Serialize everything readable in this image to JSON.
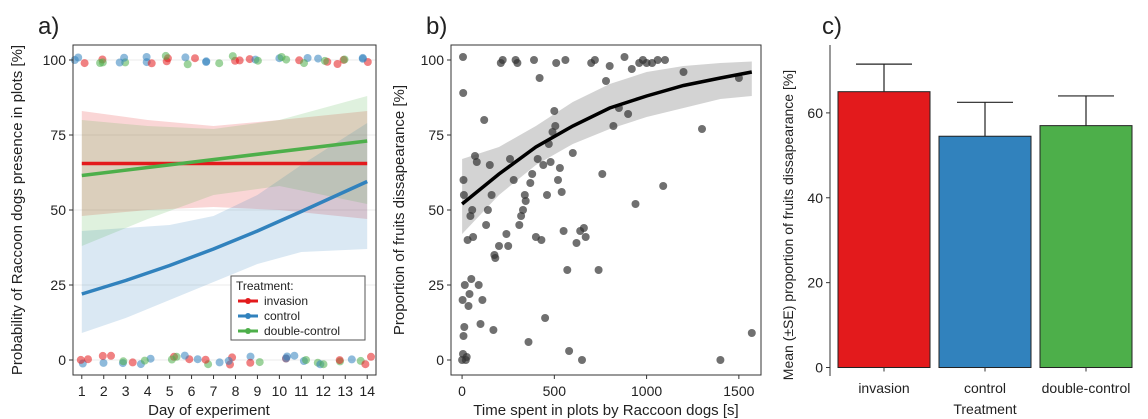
{
  "chart_data": [
    {
      "panel": "a)",
      "type": "line",
      "xlabel": "Day of experiment",
      "ylabel": "Probability of Raccoon dogs presence in plots [%]",
      "xlim": [
        0.6,
        14.4
      ],
      "ylim": [
        -5,
        105
      ],
      "x_ticks": [
        "1",
        "2",
        "3",
        "4",
        "5",
        "6",
        "7",
        "8",
        "9",
        "10",
        "11",
        "12",
        "13",
        "14"
      ],
      "y_ticks": [
        "0",
        "25",
        "50",
        "75",
        "100"
      ],
      "legend": {
        "title": "Treatment:",
        "position": "bottom-right",
        "entries": [
          "invasion",
          "control",
          "double-control"
        ]
      },
      "series": [
        {
          "name": "invasion",
          "color": "#e31a1c",
          "x": [
            1,
            14
          ],
          "y": [
            65.5,
            65.5
          ],
          "ci_x": [
            1,
            4,
            7,
            10,
            14
          ],
          "ci_lo": [
            48,
            50,
            51,
            50,
            47
          ],
          "ci_hi": [
            83,
            80,
            78,
            80,
            83
          ]
        },
        {
          "name": "control",
          "color": "#3182bd",
          "x": [
            1,
            3,
            5,
            7,
            9,
            11,
            14
          ],
          "y": [
            22,
            26.5,
            31.5,
            37,
            43,
            49.5,
            59.5
          ],
          "ci_x": [
            1,
            3,
            5,
            7,
            9,
            11,
            14
          ],
          "ci_lo": [
            9,
            14,
            20,
            26,
            32,
            36,
            37
          ],
          "ci_hi": [
            43,
            44,
            45,
            48,
            55,
            65,
            79
          ]
        },
        {
          "name": "double-control",
          "color": "#4daf4a",
          "x": [
            1,
            14
          ],
          "y": [
            61.5,
            73
          ],
          "ci_x": [
            1,
            4,
            7,
            10,
            14
          ],
          "ci_lo": [
            38,
            47,
            55,
            58,
            52
          ],
          "ci_hi": [
            80,
            78,
            77,
            80,
            88
          ]
        }
      ],
      "jitter_points": "binary presence observations at 0 and 100 for each day"
    },
    {
      "panel": "b)",
      "type": "scatter",
      "xlabel": "Time spent in plots by Raccoon dogs [s]",
      "ylabel": "Proportion of fruits dissapearance [%]",
      "xlim": [
        -60,
        1620
      ],
      "ylim": [
        -5,
        105
      ],
      "x_ticks": [
        "0",
        "500",
        "1000",
        "1500"
      ],
      "y_ticks": [
        "0",
        "25",
        "50",
        "75",
        "100"
      ],
      "fit": {
        "x": [
          0,
          200,
          400,
          600,
          800,
          1000,
          1200,
          1400,
          1570
        ],
        "y": [
          52,
          62,
          71,
          78,
          84,
          88,
          91.5,
          94,
          96
        ],
        "ci_lo": [
          42,
          55,
          65,
          72,
          77,
          81,
          84,
          87,
          88
        ],
        "ci_hi": [
          67,
          71,
          78,
          86,
          92,
          96,
          98,
          99,
          99.5
        ]
      },
      "points": [
        [
          0,
          0
        ],
        [
          5,
          2
        ],
        [
          8,
          8
        ],
        [
          12,
          11
        ],
        [
          3,
          20
        ],
        [
          15,
          25
        ],
        [
          20,
          0
        ],
        [
          25,
          1
        ],
        [
          10,
          55
        ],
        [
          8,
          60
        ],
        [
          6,
          89
        ],
        [
          5,
          101
        ],
        [
          30,
          40
        ],
        [
          45,
          48
        ],
        [
          55,
          50
        ],
        [
          60,
          41
        ],
        [
          40,
          22
        ],
        [
          50,
          27
        ],
        [
          35,
          18
        ],
        [
          70,
          68
        ],
        [
          80,
          66
        ],
        [
          90,
          25
        ],
        [
          100,
          12
        ],
        [
          110,
          20
        ],
        [
          120,
          80
        ],
        [
          130,
          45
        ],
        [
          140,
          50
        ],
        [
          150,
          65
        ],
        [
          160,
          55
        ],
        [
          170,
          10
        ],
        [
          175,
          35
        ],
        [
          180,
          34
        ],
        [
          200,
          38
        ],
        [
          210,
          99
        ],
        [
          220,
          100
        ],
        [
          240,
          42
        ],
        [
          250,
          38
        ],
        [
          260,
          67
        ],
        [
          280,
          60
        ],
        [
          290,
          100
        ],
        [
          300,
          99
        ],
        [
          310,
          45
        ],
        [
          320,
          48
        ],
        [
          330,
          50
        ],
        [
          340,
          55
        ],
        [
          345,
          53
        ],
        [
          360,
          6
        ],
        [
          370,
          59
        ],
        [
          380,
          62
        ],
        [
          390,
          100
        ],
        [
          400,
          41
        ],
        [
          410,
          67
        ],
        [
          420,
          94
        ],
        [
          430,
          40
        ],
        [
          440,
          65
        ],
        [
          450,
          14
        ],
        [
          460,
          55
        ],
        [
          470,
          72
        ],
        [
          480,
          66
        ],
        [
          490,
          76
        ],
        [
          500,
          83
        ],
        [
          505,
          78
        ],
        [
          510,
          99
        ],
        [
          520,
          60
        ],
        [
          530,
          64
        ],
        [
          540,
          56
        ],
        [
          550,
          43
        ],
        [
          560,
          100
        ],
        [
          570,
          30
        ],
        [
          580,
          3
        ],
        [
          600,
          69
        ],
        [
          620,
          39
        ],
        [
          640,
          43
        ],
        [
          650,
          0
        ],
        [
          660,
          44
        ],
        [
          670,
          41
        ],
        [
          700,
          99
        ],
        [
          720,
          100
        ],
        [
          740,
          30
        ],
        [
          760,
          62
        ],
        [
          780,
          93
        ],
        [
          800,
          98
        ],
        [
          820,
          78
        ],
        [
          850,
          84
        ],
        [
          880,
          101
        ],
        [
          900,
          82
        ],
        [
          920,
          97
        ],
        [
          940,
          52
        ],
        [
          960,
          99
        ],
        [
          980,
          100
        ],
        [
          1000,
          99
        ],
        [
          1030,
          99
        ],
        [
          1060,
          100
        ],
        [
          1090,
          58
        ],
        [
          1100,
          100
        ],
        [
          1200,
          96
        ],
        [
          1300,
          77
        ],
        [
          1400,
          0
        ],
        [
          1500,
          94
        ],
        [
          1570,
          9
        ]
      ]
    },
    {
      "panel": "c)",
      "type": "bar",
      "xlabel": "Treatment",
      "ylabel": "Mean (±SE) proportion of fruits dissapearance [%]",
      "ylim": [
        -2,
        76
      ],
      "y_ticks": [
        "0",
        "20",
        "40",
        "60"
      ],
      "categories": [
        "invasion",
        "control",
        "double-control"
      ],
      "values": [
        65,
        54.5,
        57
      ],
      "se_upper": [
        71.5,
        62.5,
        64
      ],
      "colors": [
        "#e31a1c",
        "#3182bd",
        "#4daf4a"
      ]
    }
  ]
}
